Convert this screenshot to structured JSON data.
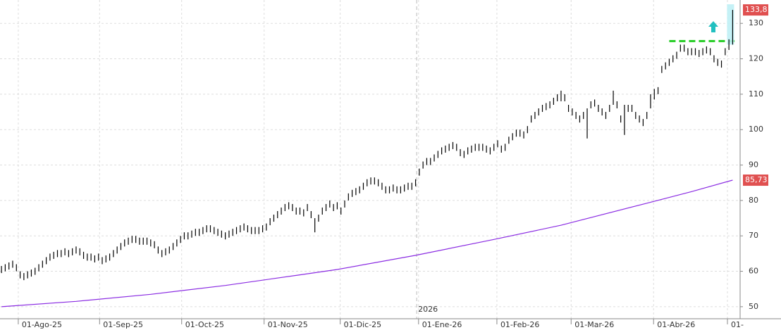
{
  "chart_data": {
    "type": "ohlc",
    "xlim": [
      -0.4,
      198
    ],
    "ylim": [
      46.6,
      136.6
    ],
    "yticks": [
      50,
      60,
      70,
      80,
      90,
      100,
      110,
      120,
      130
    ],
    "xticks": [
      {
        "value": 4.5,
        "label": "01-Ago-25"
      },
      {
        "value": 26.3,
        "label": "01-Sep-25"
      },
      {
        "value": 48.3,
        "label": "01-Oct-25"
      },
      {
        "value": 70.4,
        "label": "01-Nov-25"
      },
      {
        "value": 90.8,
        "label": "01-Dic-25"
      },
      {
        "value": 111.8,
        "label": "01-Ene-26"
      },
      {
        "value": 132.8,
        "label": "01-Feb-26"
      },
      {
        "value": 152.7,
        "label": "01-Mar-26"
      },
      {
        "value": 174.8,
        "label": "01-Abr-26"
      },
      {
        "value": 194.6,
        "label": "01-"
      }
    ],
    "grid": true,
    "year_marker": {
      "value": 111.3,
      "label": "2026"
    },
    "price": {
      "color": "#000000",
      "last": {
        "value": 133.8,
        "label": "133,8",
        "color": "#e05050"
      },
      "high": [
        61.5,
        62,
        62.5,
        63,
        62,
        60,
        59.5,
        60,
        60.5,
        61,
        62,
        63,
        64,
        65,
        65.5,
        66,
        66,
        66.5,
        66,
        66.5,
        67,
        66.5,
        65.5,
        65,
        65,
        64.5,
        65,
        64,
        64.5,
        65,
        66,
        67,
        68,
        69,
        69.5,
        70,
        70,
        69.5,
        69.5,
        69.5,
        69,
        68.5,
        67,
        66,
        66.5,
        67,
        68,
        69,
        70,
        71,
        71,
        71.5,
        72,
        72,
        72.5,
        73,
        73,
        72.5,
        72,
        71.5,
        71,
        71.5,
        72,
        72.5,
        73,
        73.5,
        73,
        72.5,
        72.5,
        72.5,
        73,
        73.5,
        75,
        76,
        77,
        78,
        79,
        79.5,
        79,
        78,
        78,
        77.5,
        79,
        77,
        75,
        76,
        78,
        79,
        80,
        79,
        79.5,
        78,
        80,
        82,
        83,
        83.5,
        84,
        85,
        86,
        86.5,
        86.5,
        86,
        85,
        84,
        84,
        84.5,
        84,
        84,
        84.5,
        85,
        85,
        86,
        89,
        91,
        92,
        92,
        93,
        94,
        95,
        95.5,
        96,
        96.5,
        96,
        94.5,
        94,
        95,
        95.5,
        96,
        96,
        96,
        95.5,
        95,
        96,
        97,
        95.5,
        96,
        98,
        99,
        100,
        100,
        99.5,
        101,
        104,
        105,
        106,
        107,
        107.5,
        108,
        109,
        110,
        111,
        110,
        107,
        106,
        105,
        104,
        105,
        106,
        108,
        108.5,
        107,
        106,
        105,
        107,
        111,
        108,
        104,
        107,
        107,
        107,
        105,
        104,
        103,
        105,
        110,
        111.5,
        112,
        118,
        119,
        120,
        121,
        122,
        124,
        124,
        123,
        123,
        123,
        122.5,
        123,
        123.5,
        123,
        121,
        120,
        119.5,
        123,
        125.5,
        133.8
      ],
      "low": [
        59.5,
        60,
        60.5,
        61,
        60,
        58,
        57.5,
        58,
        58.5,
        59,
        60,
        61,
        62,
        63,
        63.5,
        64,
        64,
        64.5,
        64,
        64.5,
        65,
        64.5,
        63.5,
        63,
        63,
        62.5,
        63,
        62,
        62.5,
        63,
        64,
        65,
        66,
        67,
        67.5,
        68,
        68,
        67.5,
        67.5,
        67.5,
        67,
        66.5,
        65,
        64,
        64.5,
        65,
        66,
        67,
        68,
        69,
        69,
        69.5,
        70,
        70,
        70.5,
        71,
        71,
        70.5,
        70,
        69.5,
        69,
        69.5,
        70,
        70.5,
        71,
        71.5,
        71,
        70.5,
        70.5,
        70.5,
        71,
        71.5,
        73,
        74,
        75,
        76,
        77,
        77.5,
        77,
        76,
        76,
        75.5,
        77,
        75,
        71,
        74,
        76,
        77,
        78,
        77,
        77.5,
        76,
        78,
        80,
        81,
        81.5,
        82,
        83,
        84,
        84.5,
        84.5,
        84,
        83,
        82,
        82,
        82.5,
        82,
        82,
        82.5,
        83,
        83,
        84,
        87,
        89,
        90,
        90,
        91,
        92,
        93,
        93.5,
        94,
        94.5,
        94,
        92.5,
        92,
        93,
        93.5,
        94,
        94,
        94,
        93.5,
        93,
        94,
        95,
        93.5,
        94,
        96,
        97,
        98,
        98,
        97.5,
        99,
        102,
        103,
        104,
        105,
        105.5,
        106,
        107,
        108,
        108,
        108,
        105,
        104,
        103,
        102,
        103,
        97.5,
        106,
        106.5,
        105,
        104,
        103,
        105,
        107,
        106,
        102,
        98.5,
        105,
        105,
        103,
        102,
        101,
        103,
        106,
        108.5,
        110,
        116,
        117,
        118,
        119,
        120,
        122,
        122,
        121,
        121,
        121,
        120.5,
        121,
        121.5,
        121,
        119,
        118,
        117.5,
        121,
        122.5,
        124
      ]
    },
    "moving_average": {
      "color": "#8a2be2",
      "x": [
        0,
        20,
        40,
        60,
        80,
        90,
        111,
        132,
        150,
        174,
        185,
        196
      ],
      "values": [
        50,
        51.5,
        53.5,
        56,
        59,
        60.5,
        64.5,
        69,
        73,
        79.5,
        82.5,
        85.73
      ],
      "last_label": "85,73",
      "label_color": "#e05050"
    },
    "level_line": {
      "value": 125,
      "x": [
        179,
        196.5
      ],
      "color": "#22cc22"
    }
  }
}
